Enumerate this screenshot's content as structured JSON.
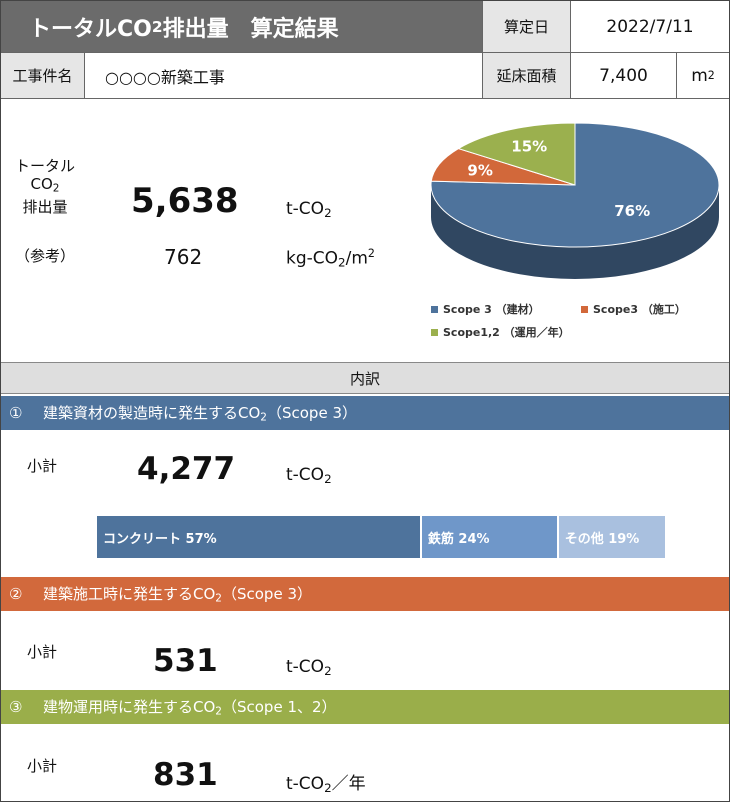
{
  "header": {
    "title_prefix": "トータルCO",
    "title_sub": "2",
    "title_suffix": "排出量　算定結果",
    "calc_date_label": "算定日",
    "calc_date": "2022/7/11",
    "project_label": "工事件名",
    "project_name": "○○○○新築工事",
    "floor_area_label": "延床面積",
    "floor_area": "7,400",
    "floor_area_unit": "m",
    "floor_area_unit_sup": "2"
  },
  "summary": {
    "label_line1": "トータル",
    "label_line2": "CO",
    "label_line2_sub": "2",
    "label_line3": "排出量",
    "total": "5,638",
    "total_unit": "t-CO",
    "total_unit_sub": "2",
    "ref_label": "（参考）",
    "per_area": "762",
    "per_area_unit_a": "kg-CO",
    "per_area_unit_sub": "2",
    "per_area_unit_b": "/m",
    "per_area_unit_sup": "2"
  },
  "chart_data": {
    "type": "pie",
    "style": "3d",
    "slices": [
      {
        "label": "Scope 3 （建材）",
        "value": 76,
        "color": "#4e739c"
      },
      {
        "label": "Scope3 （施工）",
        "value": 9,
        "color": "#d2683a"
      },
      {
        "label": "Scope1,2 （運用／年）",
        "value": 15,
        "color": "#9bb04e"
      }
    ],
    "data_labels": [
      "76%",
      "9%",
      "15%"
    ],
    "legend": "bottom"
  },
  "breakdown": {
    "heading": "内訳",
    "sections": [
      {
        "number": "①",
        "title_a": "建築資材の製造時に発生するCO",
        "title_sub": "2",
        "title_b": "（Scope 3）",
        "color": "#4e739c",
        "subtotal_label": "小計",
        "value": "4,277",
        "unit_a": "t-CO",
        "unit_sub": "2",
        "unit_b": ""
      },
      {
        "number": "②",
        "title_a": "建築施工時に発生するCO",
        "title_sub": "2",
        "title_b": "（Scope 3）",
        "color": "#d2693c",
        "subtotal_label": "小計",
        "value": "531",
        "unit_a": "t-CO",
        "unit_sub": "2",
        "unit_b": ""
      },
      {
        "number": "③",
        "title_a": "建物運用時に発生するCO",
        "title_sub": "2",
        "title_b": "（Scope 1、2）",
        "color": "#9aae4a",
        "subtotal_label": "小計",
        "value": "831",
        "unit_a": "t-CO",
        "unit_sub": "2",
        "unit_b": "／年"
      }
    ],
    "materials_bar": [
      {
        "label": "コンクリート 57%",
        "share": 57,
        "color": "#4e739c"
      },
      {
        "label": "鉄筋 24%",
        "share": 24,
        "color": "#6f97c9"
      },
      {
        "label": "その他 19%",
        "share": 19,
        "color": "#a9c0df"
      }
    ]
  }
}
